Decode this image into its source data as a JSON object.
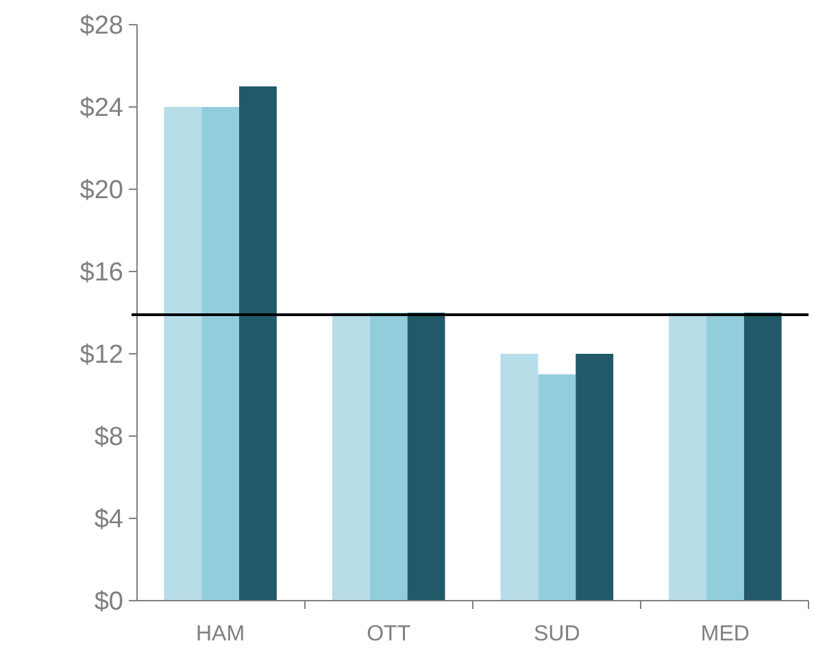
{
  "chart_data": {
    "type": "bar",
    "categories": [
      "HAM",
      "OTT",
      "SUD",
      "MED"
    ],
    "series": [
      {
        "color": "#b7dde8",
        "values": [
          24,
          14,
          12,
          14
        ]
      },
      {
        "color": "#92cddc",
        "values": [
          24,
          14,
          11,
          14
        ]
      },
      {
        "color": "#215968",
        "values": [
          25,
          14,
          12,
          14
        ]
      }
    ],
    "ylim": [
      0,
      28
    ],
    "yticks": [
      {
        "value": 0,
        "label": "$0"
      },
      {
        "value": 4,
        "label": "$4"
      },
      {
        "value": 8,
        "label": "$8"
      },
      {
        "value": 12,
        "label": "$12"
      },
      {
        "value": 16,
        "label": "$16"
      },
      {
        "value": 20,
        "label": "$20"
      },
      {
        "value": 24,
        "label": "$24"
      },
      {
        "value": 28,
        "label": "$28"
      }
    ],
    "ref_lines": [
      {
        "axis": "y",
        "value": 13.9,
        "color": "#000000"
      }
    ],
    "grid": false
  }
}
